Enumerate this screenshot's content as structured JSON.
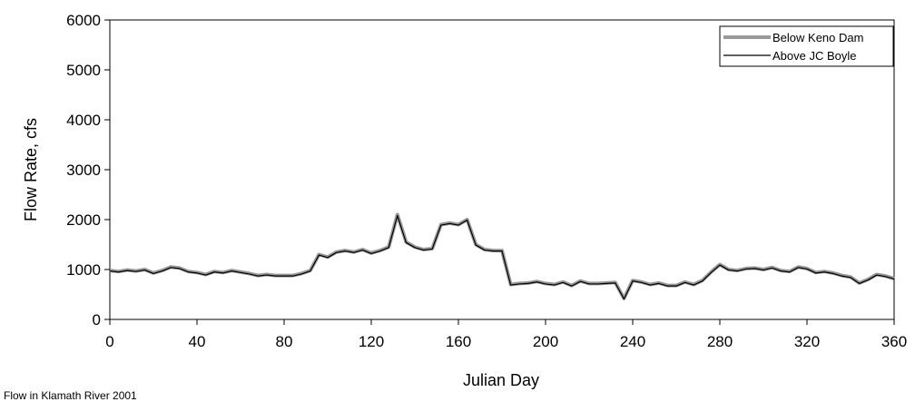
{
  "chart_data": {
    "type": "line",
    "caption": "Flow in Klamath River 2001",
    "x_label": "Julian Day",
    "y_label": "Flow Rate, cfs",
    "x": [
      0,
      4,
      8,
      12,
      16,
      20,
      24,
      28,
      32,
      36,
      40,
      44,
      48,
      52,
      56,
      60,
      64,
      68,
      72,
      76,
      80,
      84,
      88,
      92,
      96,
      100,
      104,
      108,
      112,
      116,
      120,
      124,
      128,
      132,
      136,
      140,
      144,
      148,
      152,
      156,
      160,
      164,
      168,
      172,
      176,
      180,
      184,
      188,
      192,
      196,
      200,
      204,
      208,
      212,
      216,
      220,
      224,
      228,
      232,
      236,
      240,
      244,
      248,
      252,
      256,
      260,
      264,
      268,
      272,
      276,
      280,
      284,
      288,
      292,
      296,
      300,
      304,
      308,
      312,
      316,
      320,
      324,
      328,
      332,
      336,
      340,
      344,
      348,
      352,
      356,
      360
    ],
    "series": [
      {
        "name": "Below Keno Dam",
        "color": "#999999",
        "width": 4,
        "values": [
          980,
          960,
          990,
          970,
          1000,
          930,
          980,
          1050,
          1030,
          960,
          940,
          900,
          960,
          940,
          980,
          950,
          920,
          880,
          900,
          880,
          880,
          880,
          920,
          980,
          1300,
          1250,
          1350,
          1380,
          1350,
          1400,
          1330,
          1380,
          1450,
          2100,
          1550,
          1450,
          1400,
          1420,
          1900,
          1930,
          1900,
          2000,
          1500,
          1400,
          1380,
          1380,
          700,
          720,
          730,
          760,
          720,
          700,
          750,
          680,
          770,
          720,
          720,
          730,
          740,
          420,
          780,
          750,
          700,
          730,
          680,
          680,
          750,
          700,
          780,
          950,
          1100,
          1000,
          980,
          1020,
          1030,
          1000,
          1040,
          980,
          960,
          1050,
          1020,
          940,
          960,
          930,
          880,
          850,
          730,
          800,
          900,
          870,
          820
        ]
      },
      {
        "name": "Above JC Boyle",
        "color": "#000000",
        "width": 1.2,
        "values": [
          970,
          950,
          980,
          960,
          990,
          920,
          970,
          1040,
          1020,
          950,
          930,
          890,
          950,
          930,
          970,
          940,
          910,
          870,
          890,
          870,
          870,
          870,
          910,
          970,
          1290,
          1240,
          1340,
          1370,
          1340,
          1390,
          1320,
          1370,
          1440,
          2080,
          1540,
          1440,
          1390,
          1410,
          1890,
          1920,
          1890,
          1990,
          1490,
          1390,
          1370,
          1370,
          690,
          710,
          720,
          750,
          710,
          690,
          740,
          670,
          760,
          710,
          710,
          720,
          730,
          410,
          770,
          740,
          690,
          720,
          670,
          670,
          740,
          690,
          770,
          940,
          1090,
          990,
          970,
          1010,
          1020,
          990,
          1030,
          970,
          950,
          1040,
          1010,
          930,
          950,
          920,
          870,
          840,
          720,
          790,
          890,
          860,
          810
        ]
      }
    ],
    "xlim": [
      0,
      360
    ],
    "xticks": [
      0,
      40,
      80,
      120,
      160,
      200,
      240,
      280,
      320,
      360
    ],
    "ylim": [
      0,
      6000
    ],
    "yticks": [
      0,
      1000,
      2000,
      3000,
      4000,
      5000,
      6000
    ],
    "legend": "upper-right",
    "grid": false
  }
}
